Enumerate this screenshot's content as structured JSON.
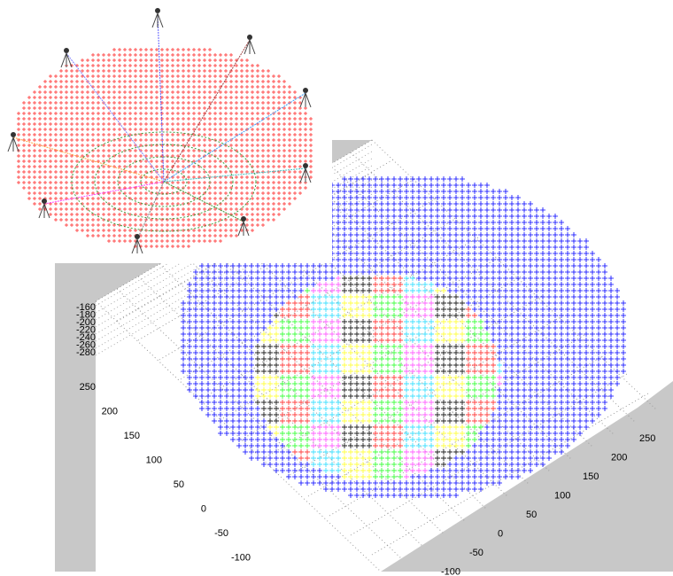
{
  "plot": {
    "z_ticks": [
      "-160",
      "-180",
      "-200",
      "-220",
      "-240",
      "-260",
      "-280"
    ],
    "y_ticks": [
      "250",
      "200",
      "150",
      "100",
      "50",
      "0",
      "-50",
      "-100"
    ],
    "x_ticks": [
      "250",
      "200",
      "150",
      "100",
      "50",
      "0",
      "-50",
      "-100"
    ]
  }
}
